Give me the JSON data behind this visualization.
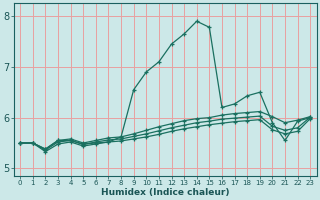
{
  "xlabel": "Humidex (Indice chaleur)",
  "xlim": [
    -0.5,
    23.5
  ],
  "ylim": [
    4.85,
    8.25
  ],
  "yticks": [
    5,
    6,
    7,
    8
  ],
  "xticks": [
    0,
    1,
    2,
    3,
    4,
    5,
    6,
    7,
    8,
    9,
    10,
    11,
    12,
    13,
    14,
    15,
    16,
    17,
    18,
    19,
    20,
    21,
    22,
    23
  ],
  "bg_color": "#cce8e8",
  "grid_color": "#e8a0a0",
  "line_color": "#1a7060",
  "line1": [
    5.5,
    5.5,
    5.38,
    5.55,
    5.55,
    5.48,
    5.5,
    5.52,
    5.62,
    6.55,
    6.9,
    7.1,
    7.45,
    7.65,
    7.9,
    7.78,
    6.2,
    6.27,
    6.43,
    6.5,
    5.9,
    5.55,
    5.93,
    6.0
  ],
  "line2": [
    5.5,
    5.5,
    5.38,
    5.55,
    5.58,
    5.5,
    5.55,
    5.6,
    5.62,
    5.68,
    5.75,
    5.82,
    5.88,
    5.94,
    5.98,
    6.0,
    6.05,
    6.08,
    6.1,
    6.12,
    6.02,
    5.9,
    5.95,
    6.02
  ],
  "line3": [
    5.5,
    5.5,
    5.36,
    5.52,
    5.55,
    5.47,
    5.52,
    5.56,
    5.58,
    5.63,
    5.68,
    5.74,
    5.8,
    5.85,
    5.9,
    5.93,
    5.97,
    5.99,
    6.01,
    6.03,
    5.83,
    5.75,
    5.8,
    6.01
  ],
  "line4": [
    5.5,
    5.5,
    5.33,
    5.48,
    5.52,
    5.44,
    5.48,
    5.52,
    5.54,
    5.58,
    5.62,
    5.67,
    5.73,
    5.78,
    5.82,
    5.86,
    5.89,
    5.92,
    5.94,
    5.96,
    5.76,
    5.68,
    5.73,
    5.98
  ]
}
